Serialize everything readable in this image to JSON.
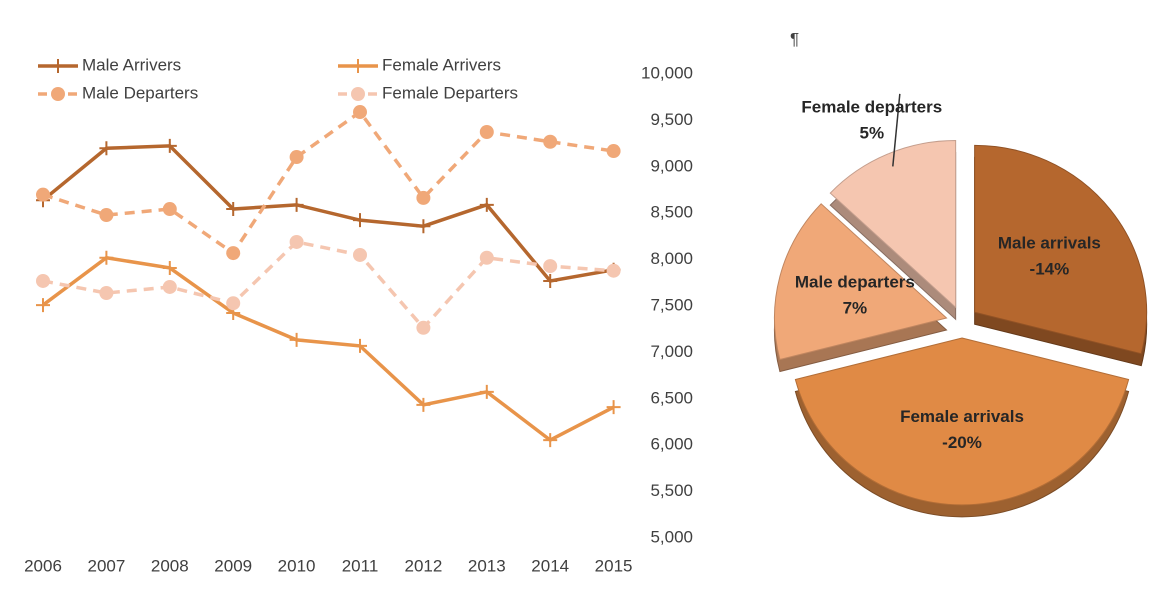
{
  "cursor_mark": "¶",
  "chart_data": [
    {
      "type": "line",
      "categories": [
        "2006",
        "2007",
        "2008",
        "2009",
        "2010",
        "2011",
        "2012",
        "2013",
        "2014",
        "2015"
      ],
      "series": [
        {
          "name": "Male Arrivers",
          "color": "#b5672e",
          "dashed": false,
          "marker": "plus",
          "values": [
            8640,
            9200,
            9225,
            8545,
            8590,
            8425,
            8360,
            8590,
            7770,
            7890
          ]
        },
        {
          "name": "Female Arrivers",
          "color": "#e8944a",
          "dashed": false,
          "marker": "plus",
          "values": [
            7510,
            8020,
            7910,
            7425,
            7135,
            7070,
            6435,
            6575,
            6055,
            6410
          ]
        },
        {
          "name": "Male Departers",
          "color": "#f0a878",
          "dashed": true,
          "marker": "circle",
          "values": [
            8700,
            8480,
            8545,
            8070,
            9105,
            9590,
            8665,
            9375,
            9270,
            9170
          ]
        },
        {
          "name": "Female Departers",
          "color": "#f5c6b0",
          "dashed": true,
          "marker": "circle",
          "values": [
            7770,
            7640,
            7705,
            7530,
            8190,
            8050,
            7265,
            8020,
            7930,
            7880
          ]
        }
      ],
      "ylim": [
        5000,
        10000
      ],
      "yticks": [
        {
          "value": 5000,
          "label": "5,000"
        },
        {
          "value": 5500,
          "label": "5,500"
        },
        {
          "value": 6000,
          "label": "6,000"
        },
        {
          "value": 6500,
          "label": "6,500"
        },
        {
          "value": 7000,
          "label": "7,000"
        },
        {
          "value": 7500,
          "label": "7,500"
        },
        {
          "value": 8000,
          "label": "8,000"
        },
        {
          "value": 8500,
          "label": "8,500"
        },
        {
          "value": 9000,
          "label": "9,000"
        },
        {
          "value": 9500,
          "label": "9,500"
        },
        {
          "value": 10000,
          "label": "10,000"
        }
      ],
      "grid": false,
      "legend": "top"
    },
    {
      "type": "pie",
      "categories": [
        "Male arrivals",
        "Female arrivals",
        "Male departers",
        "Female departers"
      ],
      "values": [
        29,
        42,
        16,
        13
      ],
      "change_labels": [
        "-14%",
        "-20%",
        "7%",
        "5%"
      ],
      "colors": [
        "#b5672e",
        "#e08a45",
        "#f0a878",
        "#f5c6b0"
      ],
      "explode": true
    }
  ]
}
